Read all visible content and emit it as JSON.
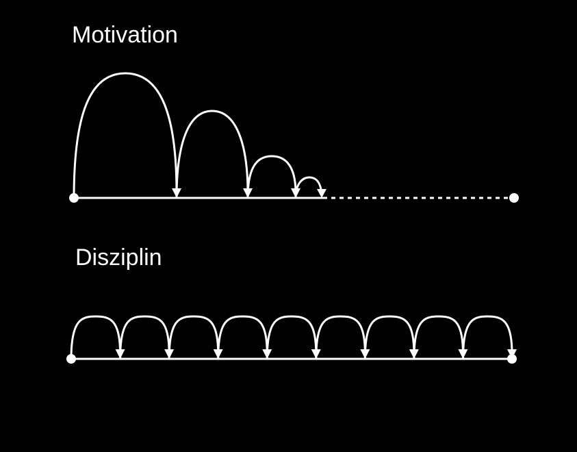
{
  "motivation": {
    "title": "Motivation"
  },
  "disziplin": {
    "title": "Disziplin"
  },
  "colors": {
    "background": "#000000",
    "line": "#ffffff"
  }
}
